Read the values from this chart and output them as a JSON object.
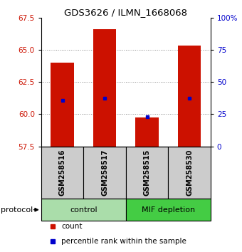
{
  "title": "GDS3626 / ILMN_1668068",
  "samples": [
    "GSM258516",
    "GSM258517",
    "GSM258515",
    "GSM258530"
  ],
  "bar_values": [
    64.0,
    66.6,
    59.72,
    65.35
  ],
  "percentile_values": [
    61.05,
    61.25,
    59.82,
    61.25
  ],
  "bar_bottom": 57.5,
  "ylim_left": [
    57.5,
    67.5
  ],
  "ylim_right": [
    0,
    100
  ],
  "yticks_left": [
    57.5,
    60.0,
    62.5,
    65.0,
    67.5
  ],
  "yticks_right": [
    0,
    25,
    50,
    75,
    100
  ],
  "bar_color": "#cc1100",
  "percentile_color": "#0000cc",
  "groups": [
    {
      "label": "control",
      "indices": [
        0,
        1
      ],
      "color": "#aaddaa"
    },
    {
      "label": "MIF depletion",
      "indices": [
        2,
        3
      ],
      "color": "#44cc44"
    }
  ],
  "protocol_label": "protocol",
  "legend_items": [
    {
      "color": "#cc1100",
      "label": "count"
    },
    {
      "color": "#0000cc",
      "label": "percentile rank within the sample"
    }
  ],
  "bar_width": 0.55,
  "sample_box_color": "#cccccc",
  "grid_color": "#888888",
  "bg_color": "#ffffff"
}
